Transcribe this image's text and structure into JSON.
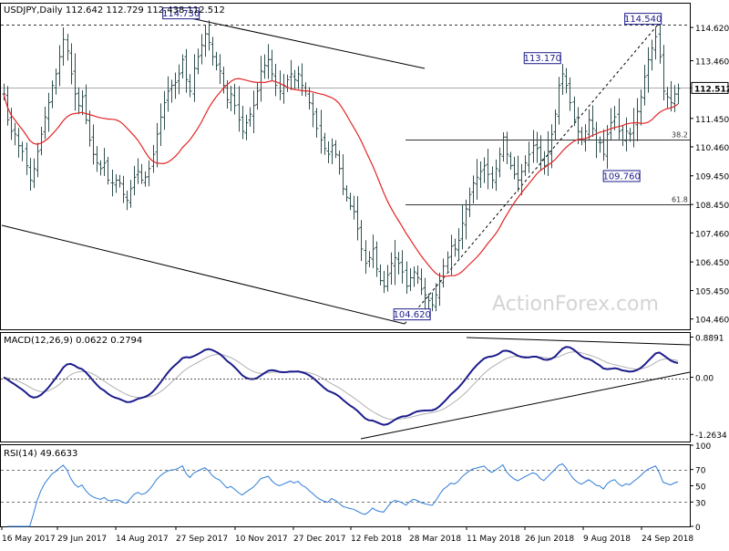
{
  "chart_data": [
    {
      "type": "ohlc",
      "panel": "price",
      "header": "USDJPY,Daily  112.642 112.729 112.438 112.512",
      "symbol": "USDJPY",
      "timeframe": "Daily",
      "ohlc_last": [
        112.642,
        112.729,
        112.438,
        112.512
      ],
      "watermark": "ActionForex.com",
      "y_ticks": [
        "114.620",
        "113.460",
        "112.512",
        "111.450",
        "110.460",
        "109.450",
        "108.450",
        "107.460",
        "106.450",
        "105.450",
        "104.460"
      ],
      "ylim": [
        104.1,
        115.45
      ],
      "colors": {
        "bars": "#2f4f4f",
        "moving_average": "#e32424",
        "trendline": "#000000"
      },
      "x_labels": [
        "16 May 2017",
        "29 Jun 2017",
        "14 Aug 2017",
        "27 Sep 2017",
        "10 Nov 2017",
        "27 Dec 2017",
        "12 Feb 2018",
        "28 Mar 2018",
        "11 May 2018",
        "26 Jun 2018",
        "9 Aug 2018",
        "24 Sep 2018"
      ],
      "levels": [
        {
          "label": "114.730",
          "value": 114.73,
          "style": "dashed",
          "axis_tag": true
        },
        {
          "label": "112.512",
          "value": 112.512,
          "style": "solid",
          "axis_tag": true
        }
      ],
      "fib_levels": [
        {
          "label": "38.2",
          "value": 110.7
        },
        {
          "label": "61.8",
          "value": 108.45
        }
      ],
      "annotations": [
        "114.730",
        "113.170",
        "109.760",
        "114.540",
        "104.620"
      ],
      "close_series": [
        112.3,
        111.4,
        111.0,
        110.9,
        110.5,
        110.3,
        109.8,
        109.3,
        109.7,
        110.3,
        110.9,
        111.5,
        112.0,
        112.6,
        113.0,
        113.6,
        114.2,
        113.8,
        113.0,
        112.3,
        111.9,
        112.2,
        111.4,
        110.7,
        110.2,
        109.9,
        109.7,
        109.9,
        109.3,
        109.2,
        109.3,
        109.2,
        108.8,
        108.6,
        109.0,
        109.4,
        109.6,
        109.3,
        109.4,
        109.7,
        110.2,
        110.9,
        111.5,
        112.0,
        112.4,
        112.6,
        112.7,
        113.0,
        113.5,
        112.8,
        112.4,
        113.2,
        113.6,
        114.0,
        114.4,
        114.1,
        113.6,
        113.3,
        113.1,
        112.6,
        112.1,
        112.3,
        111.9,
        111.4,
        111.0,
        111.3,
        111.6,
        111.9,
        112.4,
        113.1,
        113.3,
        113.5,
        113.0,
        112.6,
        112.4,
        112.6,
        112.8,
        113.0,
        112.8,
        113.0,
        112.6,
        112.4,
        112.0,
        111.6,
        111.1,
        110.7,
        110.4,
        110.2,
        110.5,
        110.2,
        109.7,
        109.0,
        108.7,
        108.4,
        108.2,
        107.6,
        106.9,
        106.4,
        106.6,
        106.9,
        106.2,
        105.8,
        105.6,
        106.0,
        106.4,
        106.6,
        106.4,
        106.1,
        105.6,
        105.9,
        106.1,
        105.9,
        105.5,
        105.3,
        105.1,
        104.95,
        105.3,
        105.8,
        106.3,
        106.6,
        107.0,
        106.9,
        107.2,
        107.8,
        108.3,
        108.8,
        109.2,
        109.4,
        109.6,
        109.8,
        109.5,
        109.3,
        109.7,
        110.2,
        110.8,
        110.2,
        109.8,
        109.5,
        109.3,
        109.6,
        109.9,
        110.2,
        110.5,
        110.4,
        110.0,
        109.8,
        110.3,
        110.9,
        111.6,
        112.6,
        113.0,
        112.6,
        112.0,
        111.4,
        111.0,
        110.7,
        111.0,
        111.4,
        111.1,
        110.7,
        110.6,
        110.2,
        110.9,
        111.3,
        111.5,
        111.0,
        110.7,
        111.0,
        110.9,
        111.3,
        111.7,
        112.2,
        112.9,
        113.5,
        113.9,
        114.3,
        113.6,
        112.4,
        112.2,
        112.0,
        112.3,
        112.5
      ]
    },
    {
      "type": "line",
      "panel": "macd",
      "header": "MACD(12,26,9) 0.0622 0.2794",
      "values": [
        0.0622,
        0.2794
      ],
      "y_ticks": [
        "0.8891",
        "0.00",
        "-1.2634"
      ],
      "ylim": [
        -1.42,
        0.98
      ],
      "colors": {
        "macd": "#1c1c8c",
        "signal": "#b0b0b0",
        "trendline": "#000000",
        "zero": "#555555"
      }
    },
    {
      "type": "line",
      "panel": "rsi",
      "header": "RSI(14) 49.6633",
      "value": 49.6633,
      "y_ticks": [
        "100",
        "70",
        "50",
        "30",
        "0"
      ],
      "ylim": [
        0,
        100
      ],
      "colors": {
        "rsi": "#2e7dd8",
        "bands": "#777777"
      }
    }
  ]
}
